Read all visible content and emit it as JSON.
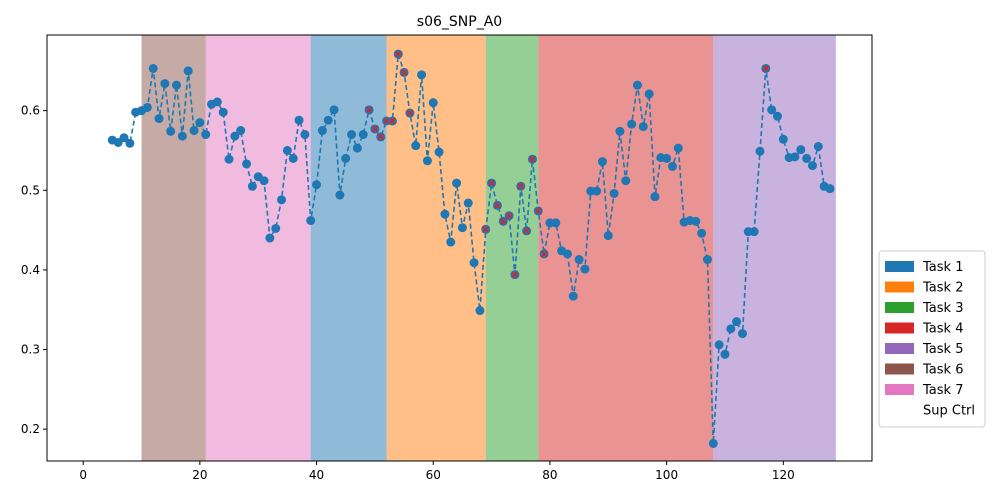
{
  "chart_data": {
    "type": "line",
    "title": "s06_SNP_A0",
    "xlabel": "",
    "ylabel": "",
    "xlim": [
      -6.2,
      135.2
    ],
    "ylim": [
      0.16,
      0.695
    ],
    "xticks": [
      0,
      20,
      40,
      60,
      80,
      100,
      120
    ],
    "yticks": [
      0.2,
      0.3,
      0.4,
      0.5,
      0.6
    ],
    "grid": false,
    "legend_position": "right",
    "line_color": "#1f77b4",
    "line_style": "dashed",
    "marker_color": "#1f77b4",
    "highlight_marker": "x",
    "highlight_color": "#d62728",
    "legend": [
      {
        "label": "Task 1",
        "color": "#1f77b4"
      },
      {
        "label": "Task 2",
        "color": "#ff7f0e"
      },
      {
        "label": "Task 3",
        "color": "#2ca02c"
      },
      {
        "label": "Task 4",
        "color": "#d62728"
      },
      {
        "label": "Task 5",
        "color": "#9467bd"
      },
      {
        "label": "Task 6",
        "color": "#8c564b"
      },
      {
        "label": "Task 7",
        "color": "#e377c2"
      },
      {
        "label": "Sup Ctrl",
        "color": "#ffffff"
      }
    ],
    "spans": [
      {
        "task": "Task 6",
        "start": 10,
        "end": 21,
        "color": "#8c564b"
      },
      {
        "task": "Task 7",
        "start": 21,
        "end": 39,
        "color": "#e377c2"
      },
      {
        "task": "Task 1",
        "start": 39,
        "end": 52,
        "color": "#1f77b4"
      },
      {
        "task": "Task 2",
        "start": 52,
        "end": 69,
        "color": "#ff7f0e"
      },
      {
        "task": "Task 3",
        "start": 69,
        "end": 78,
        "color": "#2ca02c"
      },
      {
        "task": "Task 4",
        "start": 78,
        "end": 108,
        "color": "#d62728"
      },
      {
        "task": "Task 5",
        "start": 108,
        "end": 129,
        "color": "#9467bd"
      }
    ],
    "x": [
      5,
      6,
      7,
      8,
      9,
      10,
      11,
      12,
      13,
      14,
      15,
      16,
      17,
      18,
      19,
      20,
      21,
      22,
      23,
      24,
      25,
      26,
      27,
      28,
      29,
      30,
      31,
      32,
      33,
      34,
      35,
      36,
      37,
      38,
      39,
      40,
      41,
      42,
      43,
      44,
      45,
      46,
      47,
      48,
      49,
      50,
      51,
      52,
      53,
      54,
      55,
      56,
      57,
      58,
      59,
      60,
      61,
      62,
      63,
      64,
      65,
      66,
      67,
      68,
      69,
      70,
      71,
      72,
      73,
      74,
      75,
      76,
      77,
      78,
      79,
      80,
      81,
      82,
      83,
      84,
      85,
      86,
      87,
      88,
      89,
      90,
      91,
      92,
      93,
      94,
      95,
      96,
      97,
      98,
      99,
      100,
      101,
      102,
      103,
      104,
      105,
      106,
      107,
      108,
      109,
      110,
      111,
      112,
      113,
      114,
      115,
      116,
      117,
      118,
      119,
      120,
      121,
      122,
      123,
      124,
      125,
      126,
      127,
      128
    ],
    "y": [
      0.563,
      0.56,
      0.566,
      0.559,
      0.598,
      0.6,
      0.604,
      0.653,
      0.59,
      0.634,
      0.574,
      0.632,
      0.568,
      0.65,
      0.575,
      0.585,
      0.57,
      0.608,
      0.611,
      0.598,
      0.539,
      0.568,
      0.575,
      0.533,
      0.505,
      0.517,
      0.512,
      0.44,
      0.452,
      0.488,
      0.55,
      0.54,
      0.588,
      0.57,
      0.462,
      0.507,
      0.575,
      0.588,
      0.601,
      0.494,
      0.54,
      0.57,
      0.553,
      0.57,
      0.601,
      0.577,
      0.567,
      0.587,
      0.587,
      0.671,
      0.648,
      0.597,
      0.556,
      0.645,
      0.537,
      0.61,
      0.548,
      0.47,
      0.435,
      0.509,
      0.453,
      0.484,
      0.409,
      0.349,
      0.451,
      0.509,
      0.481,
      0.461,
      0.468,
      0.394,
      0.505,
      0.449,
      0.539,
      0.474,
      0.42,
      0.459,
      0.459,
      0.424,
      0.42,
      0.367,
      0.413,
      0.401,
      0.499,
      0.499,
      0.536,
      0.443,
      0.496,
      0.574,
      0.512,
      0.583,
      0.632,
      0.58,
      0.621,
      0.492,
      0.541,
      0.54,
      0.53,
      0.553,
      0.46,
      0.462,
      0.461,
      0.446,
      0.413,
      0.182,
      0.306,
      0.294,
      0.326,
      0.335,
      0.32,
      0.448,
      0.448,
      0.549,
      0.653,
      0.601,
      0.593,
      0.564,
      0.541,
      0.542,
      0.551,
      0.54,
      0.531,
      0.555,
      0.505,
      0.502
    ],
    "highlighted_x": [
      49,
      50,
      51,
      52,
      53,
      54,
      55,
      56,
      69,
      70,
      71,
      72,
      73,
      74,
      75,
      76,
      77,
      78,
      79,
      117
    ]
  }
}
